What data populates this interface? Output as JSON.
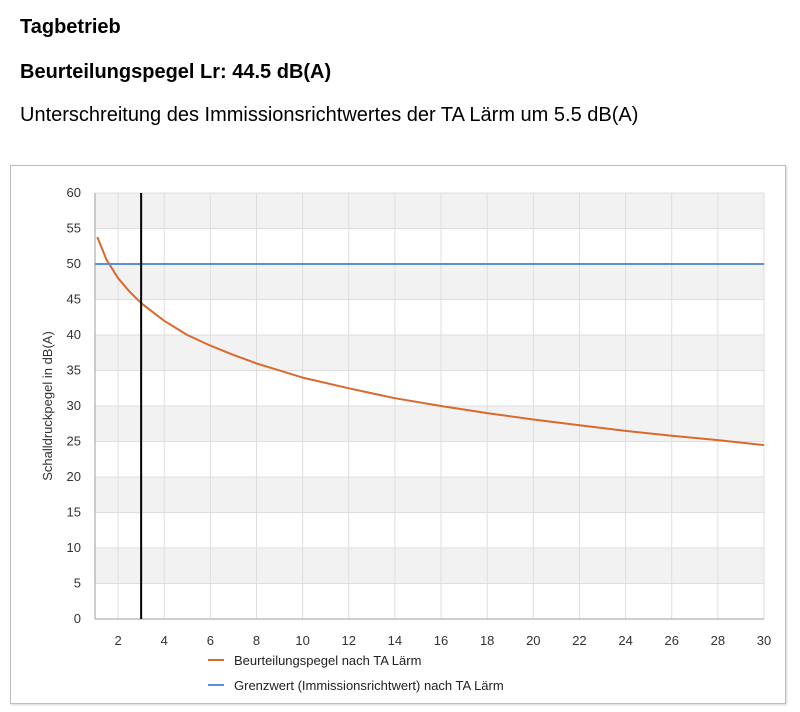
{
  "header": {
    "title": "Tagbetrieb",
    "rating_line": "Beurteilungspegel Lr: 44.5 dB(A)",
    "description": "Unterschreitung des Immissionsrichtwertes der TA Lärm um 5.5 dB(A)"
  },
  "chart_data": {
    "type": "line",
    "ylabel": "Schalldruckpegel in dB(A)",
    "xlabel": "",
    "xlim": [
      1,
      30
    ],
    "ylim": [
      0,
      60
    ],
    "x_ticks": [
      2,
      4,
      6,
      8,
      10,
      12,
      14,
      16,
      18,
      20,
      22,
      24,
      26,
      28,
      30
    ],
    "y_ticks": [
      0,
      5,
      10,
      15,
      20,
      25,
      30,
      35,
      40,
      45,
      50,
      55,
      60
    ],
    "grid": true,
    "legend_position": "bottom",
    "vertical_marker_x": 3,
    "series": [
      {
        "name": "Beurteilungspegel nach TA Lärm",
        "color": "#d9692d",
        "x": [
          1.1,
          1.5,
          2,
          2.5,
          3,
          4,
          5,
          6,
          7,
          8,
          10,
          12,
          14,
          16,
          18,
          20,
          22,
          24,
          26,
          28,
          30
        ],
        "y": [
          53.8,
          50.6,
          48.0,
          46.1,
          44.5,
          42.0,
          40.0,
          38.5,
          37.2,
          36.0,
          34.0,
          32.5,
          31.1,
          30.0,
          29.0,
          28.1,
          27.3,
          26.5,
          25.8,
          25.2,
          24.5
        ]
      },
      {
        "name": "Grenzwert (Immissionsrichtwert) nach TA Lärm",
        "color": "#5b8fd6",
        "x": [
          1,
          30
        ],
        "y": [
          50,
          50
        ]
      }
    ]
  }
}
